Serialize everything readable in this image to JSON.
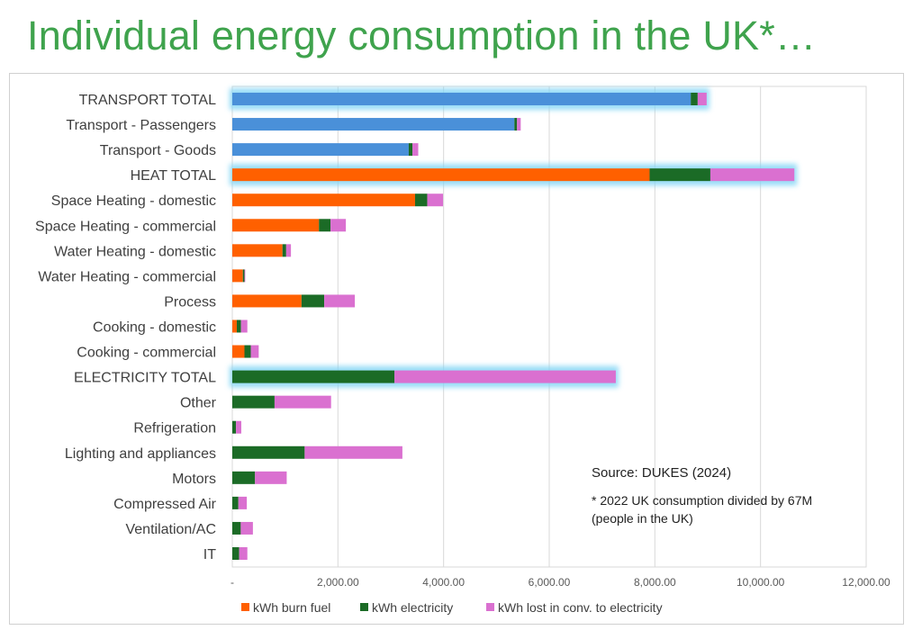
{
  "title": "Individual energy consumption in the UK*…",
  "source": "Source: DUKES (2024)",
  "footnote_line1": "* 2022 UK consumption divided by 67M",
  "footnote_line2": "(people in the UK)",
  "chart_data": {
    "type": "bar",
    "orientation": "horizontal",
    "stacked": true,
    "categories": [
      "TRANSPORT TOTAL",
      "Transport - Passengers",
      "Transport - Goods",
      "HEAT TOTAL",
      "Space Heating - domestic",
      "Space Heating - commercial",
      "Water Heating - domestic",
      "Water Heating - commercial",
      "Process",
      "Cooking - domestic",
      "Cooking - commercial",
      "ELECTRICITY TOTAL",
      "Other",
      "Refrigeration",
      "Lighting and appliances",
      "Motors",
      "Compressed Air",
      "Ventilation/AC",
      "IT"
    ],
    "highlighted": [
      "TRANSPORT TOTAL",
      "HEAT TOTAL",
      "ELECTRICITY TOTAL"
    ],
    "series": [
      {
        "name": "kWh burn fuel",
        "color": "#ff6000",
        "transport_color": "#4a90d9",
        "values": [
          8680,
          5340,
          3340,
          7900,
          3460,
          1640,
          950,
          200,
          1310,
          85,
          230,
          0,
          0,
          0,
          0,
          0,
          0,
          0,
          0
        ]
      },
      {
        "name": "kWh electricity",
        "color": "#1b6b26",
        "values": [
          130,
          50,
          70,
          1150,
          230,
          220,
          70,
          30,
          430,
          80,
          120,
          3070,
          800,
          70,
          1370,
          430,
          115,
          160,
          130
        ]
      },
      {
        "name": "kWh lost in conv. to electricity",
        "color": "#da70d0",
        "values": [
          170,
          70,
          110,
          1590,
          300,
          290,
          90,
          15,
          580,
          120,
          150,
          4190,
          1070,
          100,
          1850,
          600,
          160,
          230,
          155
        ]
      }
    ],
    "xlim": [
      0,
      12000
    ],
    "xticks": [
      "-",
      "2,000.00",
      "4,000.00",
      "6,000.00",
      "8,000.00",
      "10,000.00",
      "12,000.00"
    ],
    "grid": true,
    "legend": "bottom"
  }
}
